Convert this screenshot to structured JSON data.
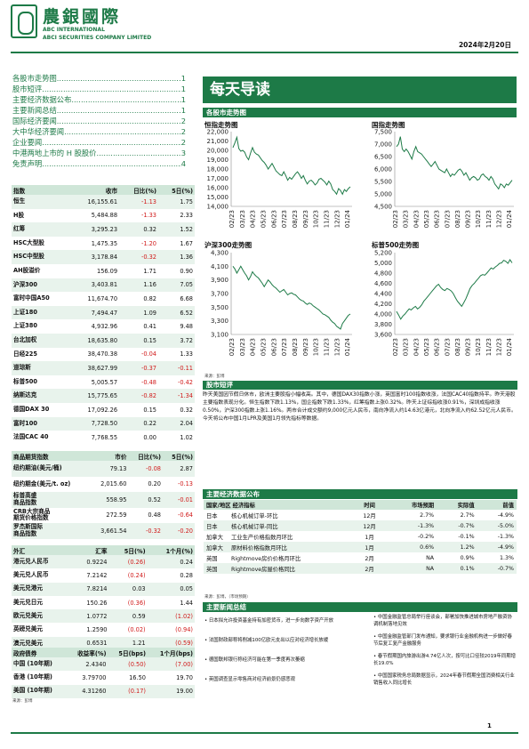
{
  "header": {
    "logo_cn": "農銀國際",
    "logo_en_1": "ABC INTERNATIONAL",
    "logo_en_2": "ABCI SECURITIES COMPANY LIMITED",
    "date": "2024年2月20日"
  },
  "toc": [
    {
      "label": "各股市走势图",
      "page": "1"
    },
    {
      "label": "股市短评",
      "page": "1"
    },
    {
      "label": "主要经济数据公布",
      "page": "1"
    },
    {
      "label": "主要新闻总结",
      "page": "1"
    },
    {
      "label": "国际经济要闻",
      "page": "2"
    },
    {
      "label": "大中华经济要闻",
      "page": "2"
    },
    {
      "label": "企业要闻",
      "page": "2"
    },
    {
      "label": "中港两地上市的 H 股股价",
      "page": "3"
    },
    {
      "label": "免责声明",
      "page": "4"
    }
  ],
  "banner": "每天导读",
  "charts_section": "各股市走势图",
  "chart_source": "来源：彭博",
  "charts": [
    {
      "title": "恒指走势图",
      "type": "line",
      "ylim": [
        14000,
        22000
      ],
      "yticks": [
        "22,000",
        "21,000",
        "20,000",
        "19,000",
        "18,000",
        "17,000",
        "16,000",
        "15,000",
        "14,000"
      ],
      "xticks": [
        "02/23",
        "03/23",
        "04/23",
        "05/23",
        "06/23",
        "07/23",
        "08/23",
        "09/23",
        "10/23",
        "11/23",
        "12/23",
        "01/24"
      ],
      "values": [
        20300,
        20800,
        21400,
        20200,
        19900,
        20000,
        19800,
        19300,
        19000,
        19700,
        20300,
        19800,
        19600,
        19500,
        19200,
        18900,
        18700,
        18400,
        18000,
        18300,
        18600,
        18200,
        17800,
        17600,
        17400,
        17300,
        17700,
        17300,
        16800,
        17100,
        16900,
        17200,
        17500,
        17700,
        17400,
        17000,
        17300,
        16800,
        16400,
        16700,
        16800,
        16600,
        16300,
        16500,
        16900,
        17000,
        16800,
        16600,
        16300,
        16700,
        16400,
        15800,
        15600,
        15300,
        15900,
        15700,
        15300,
        15800,
        15600,
        15900,
        16100
      ]
    },
    {
      "title": "国指走势图",
      "type": "line",
      "ylim": [
        4500,
        7500
      ],
      "yticks": [
        "7,500",
        "7,000",
        "6,500",
        "6,000",
        "5,500",
        "5,000",
        "4,500"
      ],
      "xticks": [
        "02/23",
        "03/23",
        "04/23",
        "05/23",
        "06/23",
        "07/23",
        "08/23",
        "09/23",
        "10/23",
        "11/23",
        "12/23",
        "01/24"
      ],
      "values": [
        6900,
        7000,
        7300,
        6800,
        6700,
        6800,
        6700,
        6550,
        6400,
        6700,
        6900,
        6700,
        6650,
        6600,
        6500,
        6400,
        6300,
        6200,
        6100,
        6200,
        6300,
        6150,
        6000,
        5950,
        5900,
        5850,
        6000,
        5850,
        5700,
        5800,
        5750,
        5850,
        5950,
        6000,
        5900,
        5750,
        5850,
        5700,
        5550,
        5650,
        5700,
        5650,
        5550,
        5600,
        5750,
        5800,
        5700,
        5650,
        5550,
        5700,
        5600,
        5400,
        5300,
        5200,
        5400,
        5350,
        5250,
        5400,
        5350,
        5450,
        5550
      ]
    },
    {
      "title": "沪深300走势图",
      "type": "line",
      "ylim": [
        3100,
        4300
      ],
      "yticks": [
        "4,300",
        "4,100",
        "3,900",
        "3,700",
        "3,500",
        "3,300",
        "3,100"
      ],
      "xticks": [
        "02/23",
        "03/23",
        "04/23",
        "05/23",
        "06/23",
        "07/23",
        "08/23",
        "09/23",
        "10/23",
        "11/23",
        "12/23",
        "01/24"
      ],
      "values": [
        4100,
        4060,
        4000,
        4050,
        4100,
        4050,
        4000,
        3960,
        3900,
        3950,
        4020,
        3980,
        3950,
        3930,
        3890,
        3850,
        3800,
        3850,
        3900,
        3870,
        3830,
        3800,
        3780,
        3750,
        3720,
        3740,
        3760,
        3720,
        3680,
        3700,
        3710,
        3690,
        3680,
        3650,
        3620,
        3600,
        3590,
        3560,
        3540,
        3560,
        3550,
        3520,
        3500,
        3480,
        3460,
        3430,
        3400,
        3390,
        3370,
        3350,
        3310,
        3280,
        3260,
        3220,
        3200,
        3180,
        3260,
        3300,
        3340,
        3380,
        3400
      ]
    },
    {
      "title": "标普500走势图",
      "type": "line",
      "ylim": [
        3600,
        5200
      ],
      "yticks": [
        "5,200",
        "5,000",
        "4,800",
        "4,600",
        "4,400",
        "4,200",
        "4,000",
        "3,800",
        "3,600"
      ],
      "xticks": [
        "02/23",
        "03/23",
        "04/23",
        "05/23",
        "06/23",
        "07/23",
        "08/23",
        "09/23",
        "10/23",
        "11/23",
        "12/23",
        "01/24"
      ],
      "values": [
        4050,
        3980,
        3900,
        3960,
        4000,
        4050,
        4100,
        4080,
        4120,
        4150,
        4100,
        4130,
        4180,
        4250,
        4300,
        4350,
        4400,
        4450,
        4500,
        4550,
        4580,
        4520,
        4480,
        4460,
        4500,
        4480,
        4450,
        4400,
        4320,
        4250,
        4200,
        4150,
        4220,
        4300,
        4400,
        4500,
        4560,
        4600,
        4650,
        4700,
        4750,
        4770,
        4760,
        4800,
        4850,
        4900,
        4880,
        4920,
        4950,
        4990,
        5000,
        5050,
        5030,
        4990,
        5060,
        5000
      ]
    }
  ],
  "market_table": {
    "headers": [
      "指数",
      "收市",
      "日比(%)",
      "5日(%)"
    ],
    "rows": [
      {
        "name": "恒生",
        "close": "16,155.61",
        "day": "-1.13",
        "week": "1.75"
      },
      {
        "name": "H股",
        "close": "5,484.88",
        "day": "-1.33",
        "week": "2.33"
      },
      {
        "name": "红筹",
        "close": "3,295.23",
        "day": "0.32",
        "week": "1.52"
      },
      {
        "name": "HSC大型股",
        "close": "1,475.35",
        "day": "-1.20",
        "week": "1.67"
      },
      {
        "name": "HSC中型股",
        "close": "3,178.84",
        "day": "-0.32",
        "week": "1.36"
      },
      {
        "name": "AH股溢价",
        "close": "156.09",
        "day": "1.71",
        "week": "0.90"
      },
      {
        "name": "沪深300",
        "close": "3,403.81",
        "day": "1.16",
        "week": "7.05"
      },
      {
        "name": "富时中国A50",
        "close": "11,674.70",
        "day": "0.82",
        "week": "6.68"
      },
      {
        "name": "上证180",
        "close": "7,494.47",
        "day": "1.09",
        "week": "6.52"
      },
      {
        "name": "上证380",
        "close": "4,932.96",
        "day": "0.41",
        "week": "9.48"
      },
      {
        "name": "台北加权",
        "close": "18,635.80",
        "day": "0.15",
        "week": "3.72"
      },
      {
        "name": "日经225",
        "close": "38,470.38",
        "day": "-0.04",
        "week": "1.33"
      },
      {
        "name": "道琼斯",
        "close": "38,627.99",
        "day": "-0.37",
        "week": "-0.11"
      },
      {
        "name": "标普500",
        "close": "5,005.57",
        "day": "-0.48",
        "week": "-0.42"
      },
      {
        "name": "纳斯达克",
        "close": "15,775.65",
        "day": "-0.82",
        "week": "-1.34"
      },
      {
        "name": "德国DAX 30",
        "close": "17,092.26",
        "day": "0.15",
        "week": "0.32"
      },
      {
        "name": "富时100",
        "close": "7,728.50",
        "day": "0.22",
        "week": "2.04"
      },
      {
        "name": "法国CAC 40",
        "close": "7,768.55",
        "day": "0.00",
        "week": "1.02"
      }
    ]
  },
  "commodity_table": {
    "headers": [
      "商品期货指数",
      "市价",
      "日比(%)",
      "5日(%)"
    ],
    "rows": [
      {
        "name": "纽约期油(美元/桶)",
        "close": "79.13",
        "day": "-0.08",
        "week": "2.87"
      },
      {
        "name": "纽约期金(美元/t. oz)",
        "close": "2,015.60",
        "day": "0.20",
        "week": "-0.13"
      },
      {
        "name": "标普高盛\n商品指数",
        "close": "558.95",
        "day": "0.52",
        "week": "-0.01"
      },
      {
        "name": "CRB大宗商品\n期货价格指数",
        "close": "272.59",
        "day": "0.48",
        "week": "-0.64"
      },
      {
        "name": "罗杰斯国际\n商品指数",
        "close": "3,661.54",
        "day": "-0.32",
        "week": "-0.20"
      }
    ]
  },
  "fx_table": {
    "headers": [
      "外汇",
      "汇率",
      "5日(%)",
      "1个月(%)"
    ],
    "rows": [
      {
        "name": "港元兑人民币",
        "close": "0.9224",
        "day": "(0.26)",
        "week": "0.24"
      },
      {
        "name": "美元兑人民币",
        "close": "7.2142",
        "day": "(0.24)",
        "week": "0.28"
      },
      {
        "name": "美元兑港元",
        "close": "7.8214",
        "day": "0.03",
        "week": "0.05"
      },
      {
        "name": "美元兑日元",
        "close": "150.26",
        "day": "(0.36)",
        "week": "1.44"
      },
      {
        "name": "欧元兑美元",
        "close": "1.0772",
        "day": "0.59",
        "week": "(1.02)"
      },
      {
        "name": "英磅兑美元",
        "close": "1.2590",
        "day": "(0.02)",
        "week": "(0.94)"
      },
      {
        "name": "澳元兑美元",
        "close": "0.6531",
        "day": "1.21",
        "week": "(0.59)"
      }
    ]
  },
  "bond_table": {
    "headers": [
      "政府债券",
      "收益率(%)",
      "5日(bps)",
      "1个月(bps)"
    ],
    "rows": [
      {
        "name": "中国 (10年期)",
        "close": "2.4340",
        "day": "(0.50)",
        "week": "(7.00)"
      },
      {
        "name": "香港 (10年期)",
        "close": "3.79700",
        "day": "16.50",
        "week": "19.70"
      },
      {
        "name": "美国 (10年期)",
        "close": "4.31260",
        "day": "(0.17)",
        "week": "19.00"
      }
    ],
    "source": "来源：彭博"
  },
  "summary": {
    "title": "股市短评",
    "text": "昨天美国因节假日休市，欧洲主要股指小幅收高。其中，德国DAX30指数小涨，英国富时100指数收涨，法国CAC40指数持平。昨天港股主要指数表现分化。恒生指数下跌1.13%，国企指数下跌1.33%，红筹指数上涨0.32%。昨天上证综指收涨0.91%，深圳成指收涨0.50%，沪深300指数上涨1.16%。两市合计成交额约9,000亿元人民币，南向净流入约14.63亿港元，北向净流入约62.52亿元人民币。今天将公布中国1月LPR及美国1月领先指标等数据。"
  },
  "econ": {
    "title": "主要经济数据公布",
    "headers": [
      "国家/地区 经济指标",
      "时间",
      "市场预期",
      "实际值",
      "前值"
    ],
    "rows": [
      {
        "region": "日本",
        "name": "核心机械订单-环比",
        "time": "12月",
        "exp": "2.7%",
        "act": "2.7%",
        "prev": "-4.9%"
      },
      {
        "region": "日本",
        "name": "核心机械订单-同比",
        "time": "12月",
        "exp": "-1.3%",
        "act": "-0.7%",
        "prev": "-5.0%"
      },
      {
        "region": "加拿大",
        "name": "工业生产价格指数月环比",
        "time": "1月",
        "exp": "-0.2%",
        "act": "-0.1%",
        "prev": "-1.3%"
      },
      {
        "region": "加拿大",
        "name": "原材料价格指数月环比",
        "time": "1月",
        "exp": "0.6%",
        "act": "1.2%",
        "prev": "-4.9%"
      },
      {
        "region": "英国",
        "name": "Rightmove房价价格月环比",
        "time": "2月",
        "exp": "NA",
        "act": "0.9%",
        "prev": "1.3%"
      },
      {
        "region": "英国",
        "name": "Rightmove房屋价格同比",
        "time": "2月",
        "exp": "NA",
        "act": "0.1%",
        "prev": "-0.7%"
      }
    ],
    "source": "来源：彭博，（市场预期）"
  },
  "news": {
    "title": "主要新闻总结",
    "left": [
      "日本拟允许投资基金持有加密货币，进一步向数字资产开放",
      "法国财政部称将削减100亿欧元支出以应对经济增长放缓",
      "德国联邦银行称经济可能在第一季度再次萎缩",
      "英国调查显示零售商对经济前景仍感悲观"
    ],
    "right": [
      "中国金融监管总局举行座谈会，部署加快推进城市房地产融资协调机制落地见效",
      "中国金融监管部门发布通知，要求银行业金融机构进一步做好春节后复工复产金融服务",
      "春节假期国内旅游出游4.74亿人次，按可比口径较2019年同期增长19.0%",
      "中国国家税务总局数据显示，2024年春节假期全国消费相关行业销售收入同比增长"
    ]
  },
  "footer": {
    "page": "1"
  }
}
